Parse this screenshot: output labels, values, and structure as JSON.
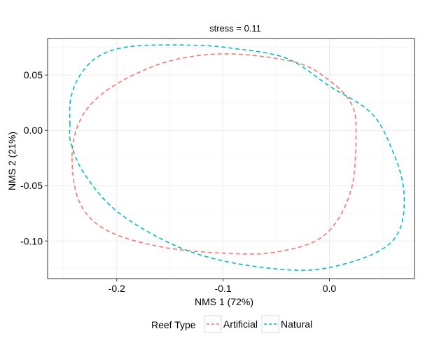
{
  "chart_data": {
    "type": "line",
    "title": "stress = 0.11",
    "xlabel": "NMS 1 (72%)",
    "ylabel": "NMS 2 (21%)",
    "xlim": [
      -0.265,
      0.08
    ],
    "ylim": [
      -0.134,
      0.083
    ],
    "x_ticks": [
      -0.2,
      -0.1,
      0.0
    ],
    "x_tick_labels": [
      "-0.2",
      "-0.1",
      "0.0"
    ],
    "y_ticks": [
      -0.1,
      -0.05,
      0.0,
      0.05
    ],
    "y_tick_labels": [
      "-0.10",
      "-0.05",
      "0.00",
      "0.05"
    ],
    "grid": true,
    "legend": {
      "title": "Reef Type",
      "position": "bottom"
    },
    "series": [
      {
        "name": "Artificial",
        "color": "#F8766D",
        "line_style": "dashed",
        "closed": true,
        "points": [
          [
            -0.242,
            -0.025
          ],
          [
            -0.235,
            -0.065
          ],
          [
            -0.21,
            -0.09
          ],
          [
            -0.16,
            -0.105
          ],
          [
            -0.1,
            -0.111
          ],
          [
            -0.05,
            -0.11
          ],
          [
            -0.005,
            -0.095
          ],
          [
            0.02,
            -0.055
          ],
          [
            0.025,
            0.0
          ],
          [
            0.02,
            0.025
          ],
          [
            0.0,
            0.045
          ],
          [
            -0.03,
            0.061
          ],
          [
            -0.09,
            0.069
          ],
          [
            -0.14,
            0.065
          ],
          [
            -0.18,
            0.052
          ],
          [
            -0.215,
            0.032
          ],
          [
            -0.235,
            0.008
          ],
          [
            -0.242,
            -0.025
          ]
        ]
      },
      {
        "name": "Natural",
        "color": "#00BFC4",
        "line_style": "dashed",
        "closed": true,
        "points": [
          [
            -0.244,
            0.005
          ],
          [
            -0.243,
            0.03
          ],
          [
            -0.233,
            0.052
          ],
          [
            -0.215,
            0.068
          ],
          [
            -0.185,
            0.076
          ],
          [
            -0.13,
            0.077
          ],
          [
            -0.09,
            0.074
          ],
          [
            -0.04,
            0.065
          ],
          [
            0.0,
            0.04
          ],
          [
            0.04,
            0.015
          ],
          [
            0.06,
            -0.02
          ],
          [
            0.07,
            -0.055
          ],
          [
            0.066,
            -0.09
          ],
          [
            0.045,
            -0.11
          ],
          [
            0.0,
            -0.124
          ],
          [
            -0.04,
            -0.126
          ],
          [
            -0.1,
            -0.118
          ],
          [
            -0.15,
            -0.102
          ],
          [
            -0.2,
            -0.073
          ],
          [
            -0.23,
            -0.04
          ],
          [
            -0.243,
            -0.012
          ],
          [
            -0.244,
            0.005
          ]
        ]
      }
    ]
  }
}
